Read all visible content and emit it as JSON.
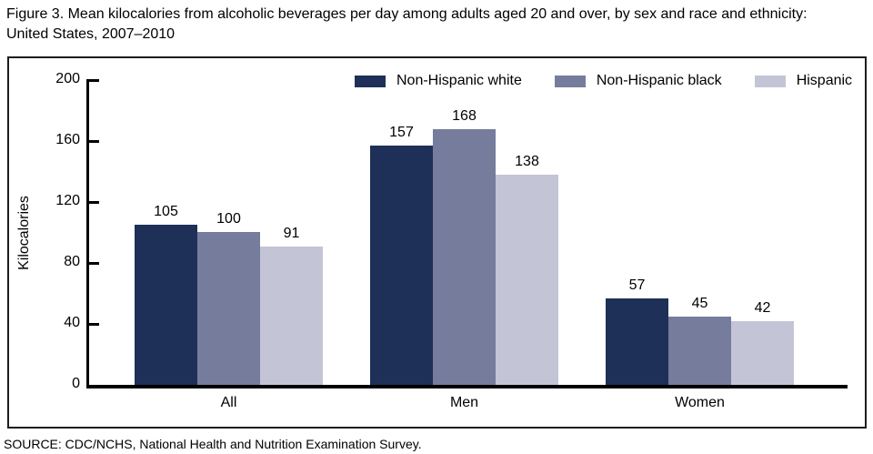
{
  "title": "Figure 3. Mean kilocalories from alcoholic beverages per day among adults aged 20 and over, by sex and race and ethnicity: United States, 2007–2010",
  "source": "SOURCE: CDC/NCHS, National Health and Nutrition Examination Survey.",
  "colors": {
    "non_hispanic_white": "#1e3057",
    "non_hispanic_black": "#767c9b",
    "hispanic": "#c3c4d6",
    "axis": "#000000",
    "frame_border": "#1c1c1c",
    "background": "#ffffff"
  },
  "chart_data": {
    "type": "bar",
    "title": "Figure 3. Mean kilocalories from alcoholic beverages per day among adults aged 20 and over, by sex and race and ethnicity: United States, 2007–2010",
    "categories": [
      "All",
      "Men",
      "Women"
    ],
    "series": [
      {
        "name": "Non-Hispanic white",
        "color": "#1e3057",
        "values": [
          105,
          157,
          57
        ]
      },
      {
        "name": "Non-Hispanic black",
        "color": "#767c9b",
        "values": [
          100,
          168,
          45
        ]
      },
      {
        "name": "Hispanic",
        "color": "#c3c4d6",
        "values": [
          91,
          138,
          42
        ]
      }
    ],
    "xlabel": "",
    "ylabel": "Kilocalories",
    "ylim": [
      0,
      200
    ],
    "yticks": [
      0,
      40,
      80,
      120,
      160,
      200
    ],
    "grid": false,
    "legend_position": "top",
    "data_labels": true
  }
}
